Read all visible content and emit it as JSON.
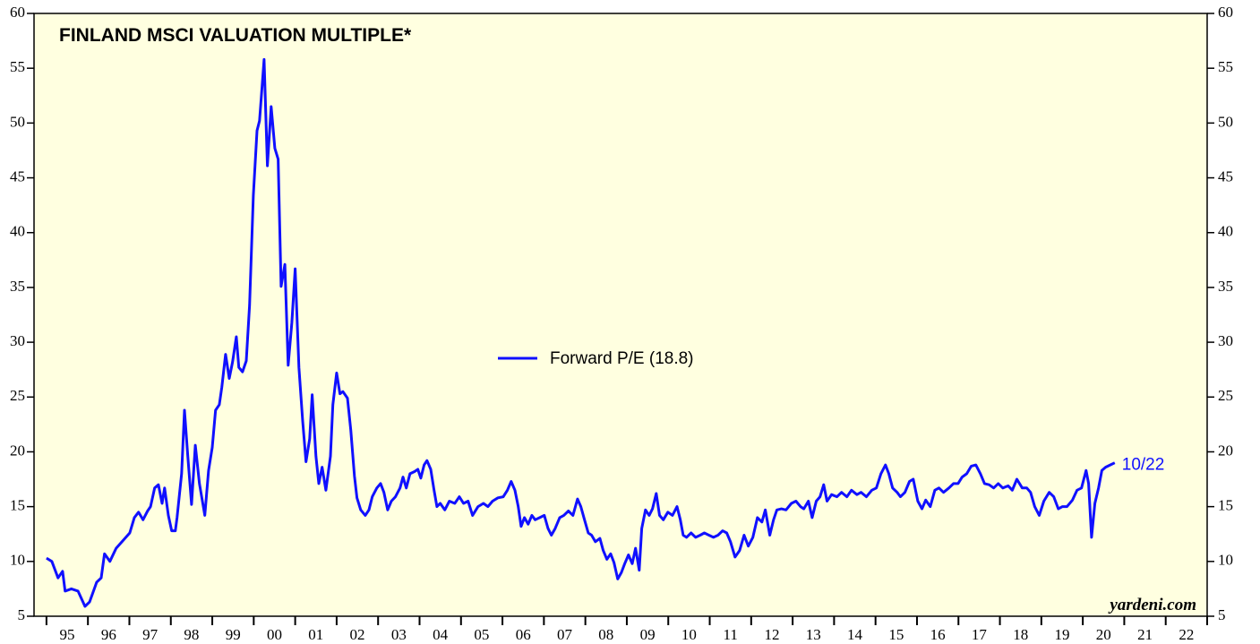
{
  "chart_data": {
    "type": "line",
    "title": "FINLAND MSCI VALUATION MULTIPLE*",
    "annotation": "10/22",
    "source": "yardeni.com",
    "xlim": [
      1994.7,
      2023.0
    ],
    "ylim": [
      5,
      60
    ],
    "yticks": [
      5,
      10,
      15,
      20,
      25,
      30,
      35,
      40,
      45,
      50,
      55,
      60
    ],
    "xtick_marks": [
      1995,
      1996,
      1997,
      1998,
      1999,
      2000,
      2001,
      2002,
      2003,
      2004,
      2005,
      2006,
      2007,
      2008,
      2009,
      2010,
      2011,
      2012,
      2013,
      2014,
      2015,
      2016,
      2017,
      2018,
      2019,
      2020,
      2021,
      2022,
      2023
    ],
    "xticks": [
      {
        "value": 1995.5,
        "label": "95"
      },
      {
        "value": 1996.5,
        "label": "96"
      },
      {
        "value": 1997.5,
        "label": "97"
      },
      {
        "value": 1998.5,
        "label": "98"
      },
      {
        "value": 1999.5,
        "label": "99"
      },
      {
        "value": 2000.5,
        "label": "00"
      },
      {
        "value": 2001.5,
        "label": "01"
      },
      {
        "value": 2002.5,
        "label": "02"
      },
      {
        "value": 2003.5,
        "label": "03"
      },
      {
        "value": 2004.5,
        "label": "04"
      },
      {
        "value": 2005.5,
        "label": "05"
      },
      {
        "value": 2006.5,
        "label": "06"
      },
      {
        "value": 2007.5,
        "label": "07"
      },
      {
        "value": 2008.5,
        "label": "08"
      },
      {
        "value": 2009.5,
        "label": "09"
      },
      {
        "value": 2010.5,
        "label": "10"
      },
      {
        "value": 2011.5,
        "label": "11"
      },
      {
        "value": 2012.5,
        "label": "12"
      },
      {
        "value": 2013.5,
        "label": "13"
      },
      {
        "value": 2014.5,
        "label": "14"
      },
      {
        "value": 2015.5,
        "label": "15"
      },
      {
        "value": 2016.5,
        "label": "16"
      },
      {
        "value": 2017.5,
        "label": "17"
      },
      {
        "value": 2018.5,
        "label": "18"
      },
      {
        "value": 2019.5,
        "label": "19"
      },
      {
        "value": 2020.5,
        "label": "20"
      },
      {
        "value": 2021.5,
        "label": "21"
      },
      {
        "value": 2022.5,
        "label": "22"
      }
    ],
    "x": [
      1995.0,
      1995.13,
      1995.28,
      1995.39,
      1995.45,
      1995.6,
      1995.76,
      1995.93,
      1996.04,
      1996.21,
      1996.32,
      1996.4,
      1996.53,
      1996.68,
      1997.01,
      1997.12,
      1997.22,
      1997.33,
      1997.44,
      1997.51,
      1997.61,
      1997.7,
      1997.79,
      1997.85,
      1997.94,
      1998.02,
      1998.11,
      1998.15,
      1998.26,
      1998.33,
      1998.41,
      1998.5,
      1998.59,
      1998.69,
      1998.82,
      1998.91,
      1999.0,
      1999.08,
      1999.17,
      1999.23,
      1999.32,
      1999.41,
      1999.49,
      1999.58,
      1999.64,
      1999.73,
      1999.82,
      1999.9,
      1999.99,
      2000.08,
      2000.14,
      2000.25,
      2000.33,
      2000.42,
      2000.51,
      2000.59,
      2000.66,
      2000.75,
      2000.83,
      2000.92,
      2001.0,
      2001.09,
      2001.18,
      2001.26,
      2001.35,
      2001.41,
      2001.5,
      2001.57,
      2001.65,
      2001.74,
      2001.85,
      2001.91,
      2002.0,
      2002.08,
      2002.15,
      2002.26,
      2002.34,
      2002.43,
      2002.49,
      2002.58,
      2002.69,
      2002.78,
      2002.86,
      2002.97,
      2003.06,
      2003.14,
      2003.23,
      2003.32,
      2003.42,
      2003.53,
      2003.6,
      2003.68,
      2003.77,
      2003.88,
      2003.96,
      2004.03,
      2004.11,
      2004.18,
      2004.27,
      2004.35,
      2004.42,
      2004.5,
      2004.61,
      2004.72,
      2004.85,
      2004.96,
      2005.06,
      2005.17,
      2005.28,
      2005.41,
      2005.54,
      2005.65,
      2005.76,
      2005.89,
      2006.02,
      2006.12,
      2006.21,
      2006.3,
      2006.38,
      2006.45,
      2006.53,
      2006.62,
      2006.71,
      2006.79,
      2006.9,
      2007.01,
      2007.1,
      2007.18,
      2007.27,
      2007.38,
      2007.48,
      2007.59,
      2007.7,
      2007.81,
      2007.89,
      2007.98,
      2008.07,
      2008.15,
      2008.24,
      2008.35,
      2008.43,
      2008.52,
      2008.61,
      2008.69,
      2008.78,
      2008.87,
      2008.95,
      2009.04,
      2009.13,
      2009.21,
      2009.3,
      2009.36,
      2009.45,
      2009.54,
      2009.62,
      2009.71,
      2009.79,
      2009.88,
      2009.99,
      2010.1,
      2010.21,
      2010.29,
      2010.36,
      2010.44,
      2010.55,
      2010.66,
      2010.77,
      2010.87,
      2010.98,
      2011.09,
      2011.2,
      2011.31,
      2011.41,
      2011.5,
      2011.61,
      2011.72,
      2011.83,
      2011.93,
      2012.04,
      2012.15,
      2012.26,
      2012.34,
      2012.45,
      2012.54,
      2012.62,
      2012.73,
      2012.84,
      2012.97,
      2013.08,
      2013.19,
      2013.27,
      2013.38,
      2013.47,
      2013.57,
      2013.66,
      2013.75,
      2013.83,
      2013.94,
      2014.07,
      2014.18,
      2014.31,
      2014.42,
      2014.55,
      2014.65,
      2014.78,
      2014.91,
      2015.02,
      2015.13,
      2015.24,
      2015.32,
      2015.41,
      2015.52,
      2015.6,
      2015.71,
      2015.82,
      2015.91,
      2016.02,
      2016.12,
      2016.21,
      2016.32,
      2016.43,
      2016.53,
      2016.64,
      2016.77,
      2016.88,
      2016.99,
      2017.09,
      2017.2,
      2017.31,
      2017.42,
      2017.53,
      2017.63,
      2017.74,
      2017.85,
      2017.96,
      2018.07,
      2018.2,
      2018.3,
      2018.41,
      2018.54,
      2018.65,
      2018.74,
      2018.84,
      2018.95,
      2019.06,
      2019.19,
      2019.3,
      2019.41,
      2019.51,
      2019.62,
      2019.75,
      2019.86,
      2019.97,
      2020.08,
      2020.14,
      2020.21,
      2020.29,
      2020.38,
      2020.46,
      2020.55,
      2020.66,
      2020.77
    ],
    "series": [
      {
        "name": "Forward P/E (18.8)",
        "color": "#1010ff",
        "values": [
          10.3,
          10.0,
          8.5,
          9.1,
          7.3,
          7.5,
          7.3,
          5.9,
          6.3,
          8.1,
          8.5,
          10.7,
          10.0,
          11.2,
          12.6,
          14.0,
          14.5,
          13.8,
          14.6,
          15.0,
          16.7,
          17.0,
          15.3,
          16.7,
          14.2,
          12.8,
          12.8,
          14.0,
          18.0,
          23.8,
          19.6,
          15.2,
          20.6,
          17.1,
          14.2,
          18.3,
          20.4,
          23.8,
          24.3,
          25.9,
          28.9,
          26.7,
          28.2,
          30.5,
          27.7,
          27.3,
          28.3,
          33.4,
          43.4,
          49.3,
          50.2,
          55.8,
          46.1,
          51.5,
          47.7,
          46.7,
          35.1,
          37.1,
          27.9,
          31.8,
          36.7,
          27.7,
          22.8,
          19.1,
          21.2,
          25.2,
          19.6,
          17.1,
          18.6,
          16.5,
          19.6,
          24.3,
          27.2,
          25.3,
          25.5,
          24.9,
          22.0,
          17.8,
          15.8,
          14.7,
          14.2,
          14.7,
          15.9,
          16.7,
          17.1,
          16.3,
          14.7,
          15.5,
          15.9,
          16.7,
          17.7,
          16.7,
          18.0,
          18.2,
          18.4,
          17.6,
          18.8,
          19.2,
          18.4,
          16.5,
          15.0,
          15.3,
          14.7,
          15.5,
          15.3,
          15.9,
          15.3,
          15.5,
          14.2,
          15.0,
          15.3,
          15.0,
          15.5,
          15.8,
          15.9,
          16.5,
          17.3,
          16.5,
          15.0,
          13.2,
          14.0,
          13.4,
          14.2,
          13.8,
          14.0,
          14.2,
          13.0,
          12.4,
          13.0,
          14.0,
          14.2,
          14.6,
          14.2,
          15.7,
          15.0,
          13.8,
          12.6,
          12.4,
          11.8,
          12.1,
          11.0,
          10.2,
          10.7,
          9.9,
          8.4,
          9.0,
          9.8,
          10.6,
          9.8,
          11.2,
          9.2,
          13.0,
          14.7,
          14.2,
          14.8,
          16.2,
          14.2,
          13.8,
          14.5,
          14.2,
          15.0,
          13.8,
          12.4,
          12.2,
          12.6,
          12.2,
          12.4,
          12.6,
          12.4,
          12.2,
          12.4,
          12.8,
          12.6,
          11.8,
          10.4,
          11.0,
          12.4,
          11.4,
          12.2,
          14.0,
          13.6,
          14.7,
          12.4,
          13.8,
          14.7,
          14.8,
          14.7,
          15.3,
          15.5,
          15.0,
          14.8,
          15.5,
          14.0,
          15.5,
          15.9,
          17.0,
          15.5,
          16.1,
          15.9,
          16.3,
          15.9,
          16.5,
          16.1,
          16.3,
          15.9,
          16.5,
          16.7,
          18.0,
          18.8,
          18.0,
          16.7,
          16.3,
          15.9,
          16.3,
          17.3,
          17.5,
          15.5,
          14.8,
          15.6,
          15.0,
          16.5,
          16.7,
          16.3,
          16.7,
          17.1,
          17.1,
          17.7,
          18.0,
          18.7,
          18.8,
          18.0,
          17.1,
          17.0,
          16.7,
          17.1,
          16.7,
          16.9,
          16.5,
          17.5,
          16.7,
          16.7,
          16.3,
          15.0,
          14.2,
          15.5,
          16.3,
          15.9,
          14.8,
          15.0,
          15.0,
          15.6,
          16.5,
          16.7,
          18.3,
          17.1,
          12.2,
          15.3,
          16.7,
          18.3,
          18.6,
          18.8,
          19.0
        ]
      }
    ]
  }
}
